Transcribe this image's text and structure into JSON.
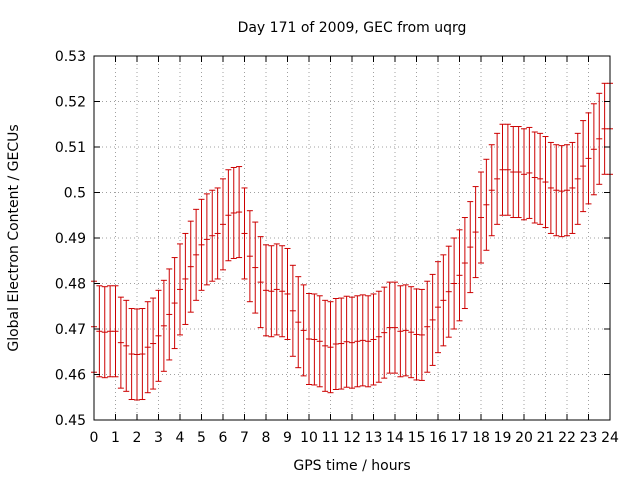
{
  "chart_data": {
    "type": "scatter",
    "title": "Day 171 of 2009, GEC from uqrg",
    "xlabel": "GPS time / hours",
    "ylabel": "Global Electron Content / GECUs",
    "xlim": [
      0,
      24
    ],
    "ylim": [
      0.45,
      0.53
    ],
    "xticks": [
      "0",
      "1",
      "2",
      "3",
      "4",
      "5",
      "6",
      "7",
      "8",
      "9",
      "10",
      "11",
      "12",
      "13",
      "14",
      "15",
      "16",
      "17",
      "18",
      "19",
      "20",
      "21",
      "22",
      "23",
      "24"
    ],
    "yticks": [
      "0.45",
      "0.46",
      "0.47",
      "0.48",
      "0.49",
      "0.5",
      "0.51",
      "0.52",
      "0.53"
    ],
    "grid": true,
    "error_bar": 0.01,
    "colors": {
      "series": "#cc0000",
      "grid": "#a0a0a0",
      "frame": "#000000"
    },
    "series": [
      {
        "x": [
          0,
          0.25,
          0.5,
          0.75,
          1,
          1.25,
          1.5,
          1.75,
          2,
          2.25,
          2.5,
          2.75,
          3,
          3.25,
          3.5,
          3.75,
          4,
          4.25,
          4.5,
          4.75,
          5,
          5.25,
          5.5,
          5.75,
          6,
          6.25,
          6.5,
          6.75,
          7,
          7.25,
          7.5,
          7.75,
          8,
          8.25,
          8.5,
          8.75,
          9,
          9.25,
          9.5,
          9.75,
          10,
          10.25,
          10.5,
          10.75,
          11,
          11.25,
          11.5,
          11.75,
          12,
          12.25,
          12.5,
          12.75,
          13,
          13.25,
          13.5,
          13.75,
          14,
          14.25,
          14.5,
          14.75,
          15,
          15.25,
          15.5,
          15.75,
          16,
          16.25,
          16.5,
          16.75,
          17,
          17.25,
          17.5,
          17.75,
          18,
          18.25,
          18.5,
          18.75,
          19,
          19.25,
          19.5,
          19.75,
          20,
          20.25,
          20.5,
          20.75,
          21,
          21.25,
          21.5,
          21.75,
          22,
          22.25,
          22.5,
          22.75,
          23,
          23.25,
          23.5,
          23.75,
          24
        ],
        "y": [
          0.4705,
          0.4695,
          0.4693,
          0.4695,
          0.4695,
          0.467,
          0.4663,
          0.4645,
          0.4644,
          0.4645,
          0.466,
          0.4668,
          0.4685,
          0.4707,
          0.4732,
          0.4757,
          0.4787,
          0.481,
          0.4837,
          0.4863,
          0.4885,
          0.4897,
          0.4905,
          0.491,
          0.493,
          0.495,
          0.4955,
          0.4957,
          0.491,
          0.486,
          0.4835,
          0.4803,
          0.4785,
          0.4783,
          0.4787,
          0.4783,
          0.4777,
          0.474,
          0.4715,
          0.4697,
          0.4678,
          0.4677,
          0.4673,
          0.4663,
          0.466,
          0.4667,
          0.4668,
          0.4672,
          0.467,
          0.4673,
          0.4675,
          0.4673,
          0.4677,
          0.4683,
          0.4692,
          0.4703,
          0.4703,
          0.4695,
          0.4697,
          0.4693,
          0.4688,
          0.4687,
          0.4705,
          0.472,
          0.4748,
          0.4763,
          0.4782,
          0.48,
          0.4818,
          0.4845,
          0.488,
          0.4913,
          0.4945,
          0.4973,
          0.5005,
          0.503,
          0.505,
          0.505,
          0.5045,
          0.5045,
          0.504,
          0.5043,
          0.5033,
          0.503,
          0.5023,
          0.501,
          0.5005,
          0.5003,
          0.5005,
          0.501,
          0.503,
          0.5058,
          0.5075,
          0.5095,
          0.5118,
          0.514,
          0.514
        ]
      }
    ]
  }
}
